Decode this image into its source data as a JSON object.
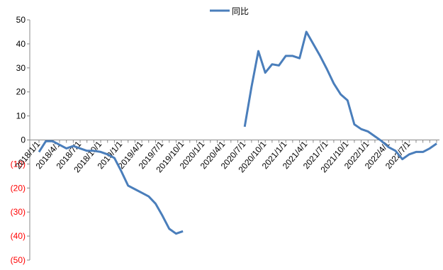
{
  "chart_data": {
    "type": "line",
    "categories": [
      "2018/1/1",
      null,
      null,
      "2018/4/1",
      null,
      null,
      "2018/7/1",
      null,
      null,
      "2018/10/1",
      null,
      null,
      "2019/1/1",
      null,
      null,
      "2019/4/1",
      null,
      null,
      "2019/7/1",
      null,
      null,
      "2019/10/1",
      null,
      null,
      "2020/1/1",
      null,
      null,
      "2020/4/1",
      null,
      null,
      "2020/7/1",
      null,
      null,
      "2020/10/1",
      null,
      null,
      "2021/1/1",
      null,
      null,
      "2021/4/1",
      null,
      null,
      "2021/7/1",
      null,
      null,
      "2021/10/1",
      null,
      null,
      "2022/1/1",
      null,
      null,
      "2022/4/1",
      null,
      null,
      "2022/7/1",
      null,
      null,
      null,
      null
    ],
    "series": [
      {
        "name": "同比",
        "color": "#4a7ebb",
        "values": [
          -5,
          -0.5,
          -0.5,
          -2,
          -3.5,
          -2.5,
          -3.5,
          -4.5,
          -4.5,
          -5,
          -6,
          -7.5,
          -13,
          -19,
          -20.5,
          -22,
          -23.5,
          -26.5,
          -31.5,
          -37,
          -39,
          -38,
          null,
          null,
          null,
          null,
          null,
          null,
          null,
          null,
          5.5,
          22,
          37,
          28,
          31.5,
          31,
          35,
          35,
          34,
          45,
          40,
          35,
          29.5,
          23.5,
          19,
          16.5,
          6.5,
          4.5,
          3.5,
          1.5,
          -0.5,
          -3,
          -4.5,
          -8,
          -6,
          -5,
          -5,
          -3.5,
          -1.5
        ]
      }
    ],
    "ylim": [
      -50,
      50
    ],
    "yticks": [
      50,
      40,
      30,
      20,
      10,
      0,
      {
        "value": -10,
        "label": "(10)"
      },
      {
        "value": -20,
        "label": "(20)"
      },
      {
        "value": -30,
        "label": "(30)"
      },
      {
        "value": -40,
        "label": "(40)"
      },
      {
        "value": -50,
        "label": "(50)"
      }
    ],
    "negative_tick_color": "#ff0000",
    "grid": false
  }
}
